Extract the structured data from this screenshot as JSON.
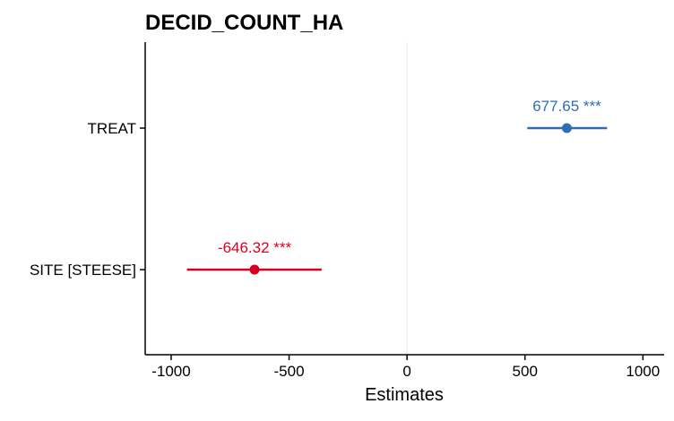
{
  "chart_data": {
    "type": "forest",
    "title": "DECID_COUNT_HA",
    "xlabel": "Estimates",
    "ylabel": "",
    "xlim": [
      -1110,
      1090
    ],
    "xticks": [
      -1000,
      -500,
      0,
      500,
      1000
    ],
    "xtick_labels": [
      "-1000",
      "-500",
      "0",
      "500",
      "1000"
    ],
    "categories": [
      "TREAT",
      "SITE [STEESE]"
    ],
    "terms": [
      {
        "label": "TREAT",
        "estimate": 677.65,
        "ci_low": 510,
        "ci_high": 848,
        "annotation": "677.65 ***",
        "color": "#2e6db2"
      },
      {
        "label": "SITE [STEESE]",
        "estimate": -646.32,
        "ci_low": -933,
        "ci_high": -362,
        "annotation": "-646.32 ***",
        "color": "#d7001f"
      }
    ],
    "reference_line": 0,
    "grid": false
  }
}
